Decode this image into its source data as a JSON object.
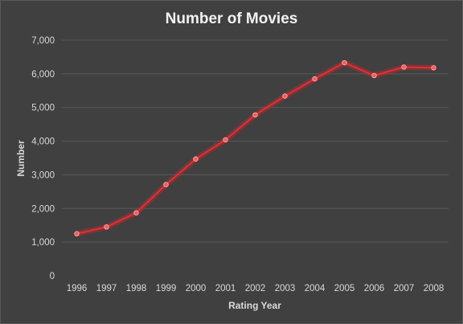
{
  "chart_data": {
    "type": "line",
    "title": "Number of Movies",
    "xlabel": "Rating Year",
    "ylabel": "Number",
    "categories": [
      "1996",
      "1997",
      "1998",
      "1999",
      "2000",
      "2001",
      "2002",
      "2003",
      "2004",
      "2005",
      "2006",
      "2007",
      "2008"
    ],
    "series": [
      {
        "values": [
          1250,
          1450,
          1870,
          2710,
          3470,
          4040,
          4780,
          5340,
          5850,
          6330,
          5950,
          6200,
          6180
        ]
      }
    ],
    "ylim": [
      0,
      7000
    ],
    "yticks": [
      0,
      1000,
      2000,
      3000,
      4000,
      5000,
      6000,
      7000
    ],
    "ytick_labels": [
      "0",
      "1,000",
      "2,000",
      "3,000",
      "4,000",
      "5,000",
      "6,000",
      "7,000"
    ],
    "grid": true,
    "legend": "none",
    "colors": {
      "background": "#404040",
      "line": "#e02f35",
      "marker": "#f25c60",
      "gridline": "#595959",
      "text": "#d9d9d9"
    }
  }
}
